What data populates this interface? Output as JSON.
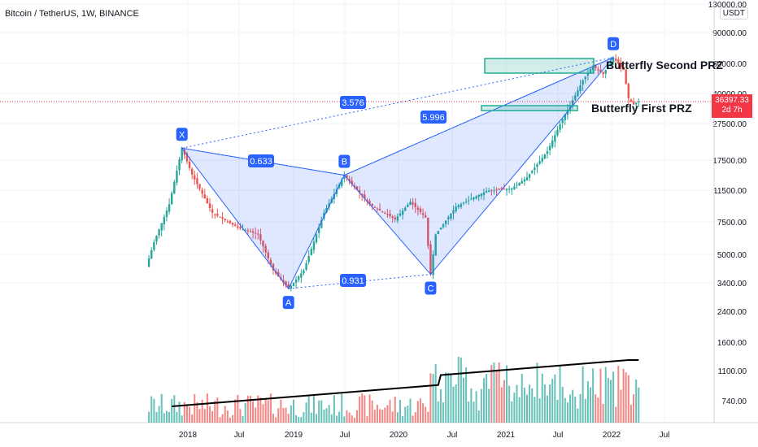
{
  "title": "Bitcoin / TetherUS, 1W, BINANCE",
  "currency": "USDT",
  "last_price": {
    "value": "36397.33",
    "countdown": "2d 7h"
  },
  "colors": {
    "up": "#26a69a",
    "down": "#ef5350",
    "pattern": "#2962ff",
    "prz": "#22ab94"
  },
  "chart_data": {
    "type": "candlestick",
    "scale": "log",
    "x": [
      "2018",
      "Jul",
      "2019",
      "Jul",
      "2020",
      "Jul",
      "2021",
      "Jul",
      "2022",
      "Jul"
    ],
    "y_ticks": [
      "130000.00",
      "90000.00",
      "60000.00",
      "40000.00",
      "27500.00",
      "17500.00",
      "11500.00",
      "7500.00",
      "5000.00",
      "3400.00"
    ],
    "volume_ticks": [
      "2400.00",
      "1600.00",
      "1100.00",
      "740.00"
    ],
    "pattern": {
      "points": [
        {
          "label": "X",
          "price": 19800
        },
        {
          "label": "A",
          "price": 3150
        },
        {
          "label": "B",
          "price": 13900
        },
        {
          "label": "C",
          "price": 3800
        },
        {
          "label": "D",
          "price": 64800
        }
      ],
      "ratios": [
        "0.633",
        "0.931",
        "3.576",
        "5.996"
      ]
    },
    "annotations": [
      "Butterfly Second PRZ",
      "Butterfly First PRZ"
    ],
    "last_price": 36397.33
  }
}
